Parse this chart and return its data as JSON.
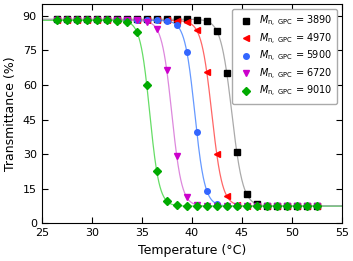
{
  "series": [
    {
      "label_value": "3890",
      "line_color": "#aaaaaa",
      "marker_color": "#000000",
      "marker": "s",
      "midpoint": 44.0,
      "steepness": 1.8,
      "ymax": 88.5,
      "ymin": 7.5
    },
    {
      "label_value": "4970",
      "line_color": "#ff6666",
      "marker_color": "#ff0000",
      "marker": "<",
      "midpoint": 42.0,
      "steepness": 1.9,
      "ymax": 88.0,
      "ymin": 7.5
    },
    {
      "label_value": "5900",
      "line_color": "#6699ff",
      "marker_color": "#3366ff",
      "marker": "o",
      "midpoint": 40.3,
      "steepness": 2.0,
      "ymax": 88.0,
      "ymin": 7.5
    },
    {
      "label_value": "6720",
      "line_color": "#dd88dd",
      "marker_color": "#cc00cc",
      "marker": "v",
      "midpoint": 38.0,
      "steepness": 2.0,
      "ymax": 88.0,
      "ymin": 7.5
    },
    {
      "label_value": "9010",
      "line_color": "#66dd66",
      "marker_color": "#00aa00",
      "marker": "D",
      "midpoint": 35.8,
      "steepness": 2.1,
      "ymax": 88.0,
      "ymin": 7.5
    }
  ],
  "xlim": [
    25,
    55
  ],
  "ylim": [
    0,
    95
  ],
  "xticks": [
    25,
    30,
    35,
    40,
    45,
    50,
    55
  ],
  "yticks": [
    0,
    15,
    30,
    45,
    60,
    75,
    90
  ],
  "xlabel": "Temperature (°C)",
  "ylabel": "Transmittance (%)",
  "marker_start": 26.5,
  "marker_end": 52.5,
  "marker_step": 1.0,
  "figsize": [
    3.53,
    2.61
  ],
  "dpi": 100,
  "legend_fontsize": 7.0,
  "axis_fontsize": 9,
  "tick_fontsize": 8
}
